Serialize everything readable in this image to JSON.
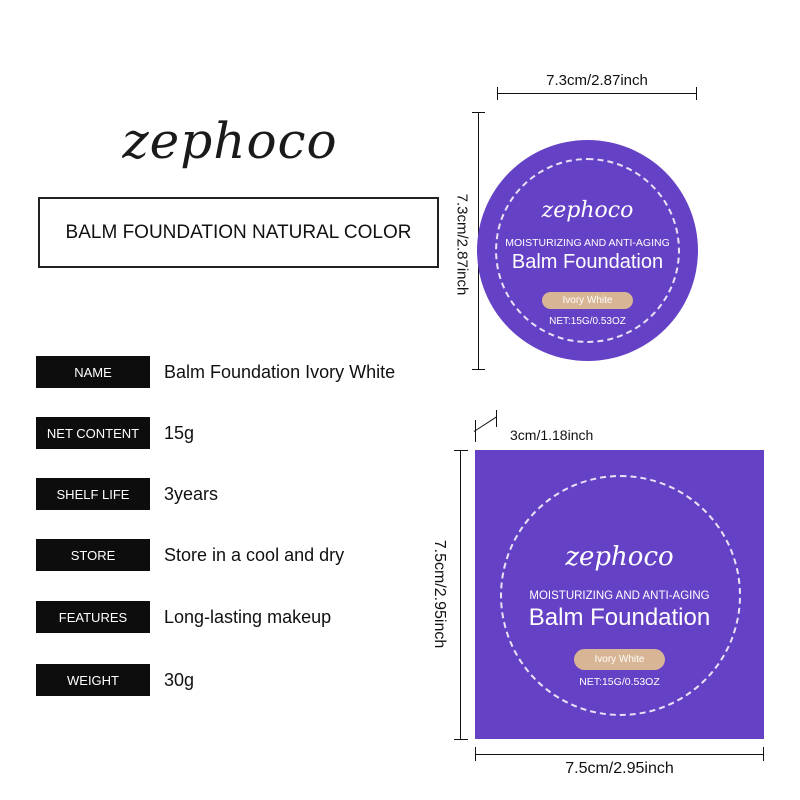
{
  "brand": "zephoco",
  "title": "BALM FOUNDATION NATURAL COLOR",
  "specs": [
    {
      "label": "NAME",
      "value": "Balm Foundation Ivory White"
    },
    {
      "label": "NET  CONTENT",
      "value": "15g"
    },
    {
      "label": "SHELF LIFE",
      "value": "3years"
    },
    {
      "label": "STORE",
      "value": "Store in a cool and dry"
    },
    {
      "label": "FEATURES",
      "value": "Long-lasting makeup"
    },
    {
      "label": "WEIGHT",
      "value": "30g"
    }
  ],
  "product": {
    "brand": "zephoco",
    "tagline": "MOISTURIZING AND ANTI-AGING",
    "name": "Balm Foundation",
    "shade": "Ivory White",
    "net": "NET:15G/0.53OZ"
  },
  "dimensions": {
    "jar_width": "7.3cm/2.87inch",
    "jar_height": "7.3cm/2.87inch",
    "box_depth": "3cm/1.18inch",
    "box_height": "7.5cm/2.95inch",
    "box_width": "7.5cm/2.95inch"
  },
  "colors": {
    "package": "#6541c6",
    "shade_pill": "#d8b594"
  }
}
